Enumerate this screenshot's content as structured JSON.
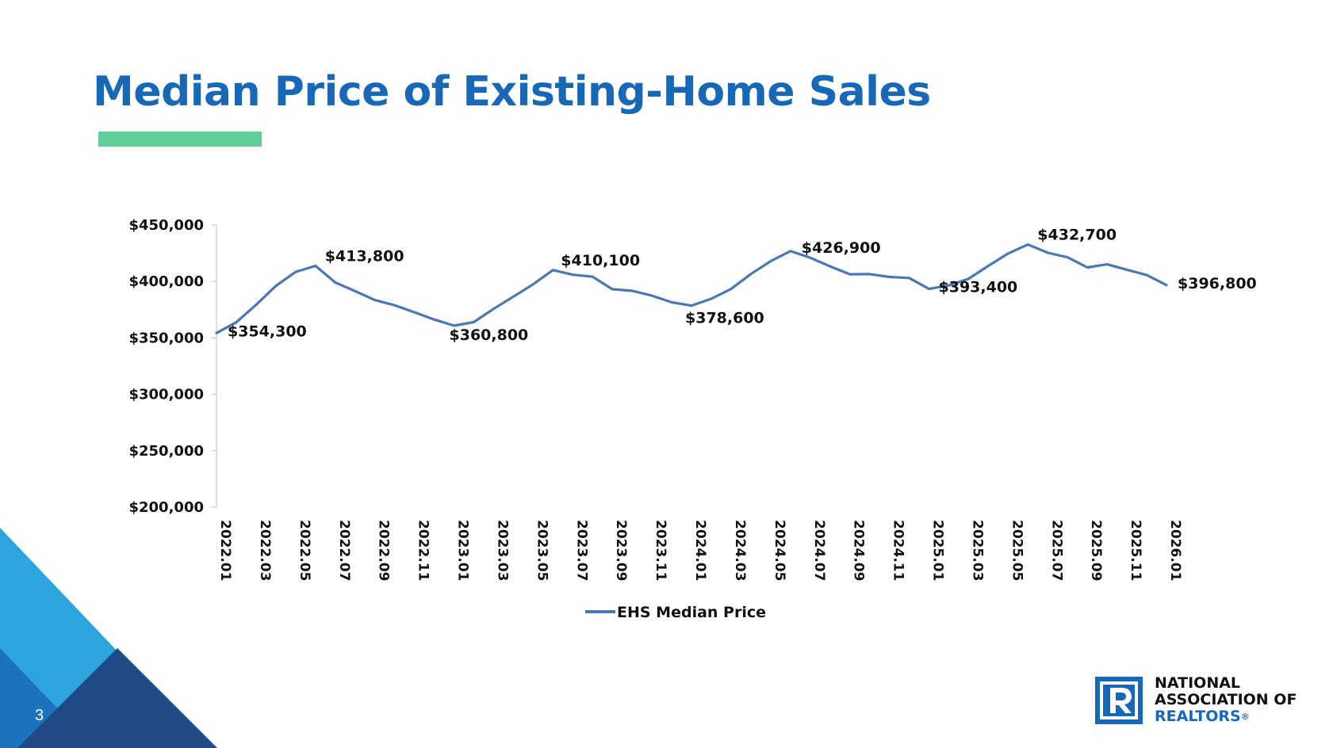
{
  "slide": {
    "title": "Median Price of Existing-Home Sales",
    "page_number": "3",
    "colors": {
      "title": "#1769b7",
      "accent_bar": "#5fcf97",
      "series": "#4a78b3"
    }
  },
  "logo": {
    "line1": "NATIONAL",
    "line2": "ASSOCIATION OF",
    "line3": "REALTORS",
    "registered_mark": "®"
  },
  "chart_data": {
    "type": "line",
    "title": "",
    "xlabel": "",
    "ylabel": "",
    "ylim": [
      200000,
      450000
    ],
    "y_ticks": [
      {
        "value": 450000,
        "label": "$450,000"
      },
      {
        "value": 400000,
        "label": "$400,000"
      },
      {
        "value": 350000,
        "label": "$350,000"
      },
      {
        "value": 300000,
        "label": "$300,000"
      },
      {
        "value": 250000,
        "label": "$250,000"
      },
      {
        "value": 200000,
        "label": "$200,000"
      }
    ],
    "x_tick_labels": [
      "2022.01",
      "2022.03",
      "2022.05",
      "2022.07",
      "2022.09",
      "2022.11",
      "2023.01",
      "2023.03",
      "2023.05",
      "2023.07",
      "2023.09",
      "2023.11",
      "2024.01",
      "2024.03",
      "2024.05",
      "2024.07",
      "2024.09",
      "2024.11",
      "2025.01",
      "2025.03",
      "2025.05",
      "2025.07",
      "2025.09",
      "2025.11",
      "2026.01"
    ],
    "categories": [
      "2022.01",
      "2022.02",
      "2022.03",
      "2022.04",
      "2022.05",
      "2022.06",
      "2022.07",
      "2022.08",
      "2022.09",
      "2022.10",
      "2022.11",
      "2022.12",
      "2023.01",
      "2023.02",
      "2023.03",
      "2023.04",
      "2023.05",
      "2023.06",
      "2023.07",
      "2023.08",
      "2023.09",
      "2023.10",
      "2023.11",
      "2023.12",
      "2024.01",
      "2024.02",
      "2024.03",
      "2024.04",
      "2024.05",
      "2024.06",
      "2024.07",
      "2024.08",
      "2024.09",
      "2024.10",
      "2024.11",
      "2024.12",
      "2025.01",
      "2025.02",
      "2025.03",
      "2025.04",
      "2025.05",
      "2025.06",
      "2025.07",
      "2025.08",
      "2025.09",
      "2025.10",
      "2025.11",
      "2025.12",
      "2026.01"
    ],
    "series": [
      {
        "name": "EHS Median Price",
        "values": [
          354300,
          363800,
          379300,
          396100,
          408400,
          413800,
          399100,
          391400,
          383500,
          378900,
          372700,
          366300,
          360800,
          364000,
          375700,
          386500,
          397500,
          410100,
          406000,
          404200,
          393100,
          391700,
          387400,
          381500,
          378600,
          384700,
          393300,
          406600,
          418000,
          426900,
          421000,
          413400,
          406400,
          406500,
          404000,
          403100,
          393400,
          396500,
          402300,
          413800,
          424800,
          432700,
          425400,
          421400,
          412400,
          415200,
          410400,
          405700,
          396800
        ]
      }
    ],
    "data_labels": [
      {
        "index": 0,
        "text": "$354,300"
      },
      {
        "index": 5,
        "text": "$413,800"
      },
      {
        "index": 12,
        "text": "$360,800"
      },
      {
        "index": 17,
        "text": "$410,100"
      },
      {
        "index": 24,
        "text": "$378,600"
      },
      {
        "index": 29,
        "text": "$426,900"
      },
      {
        "index": 36,
        "text": "$393,400"
      },
      {
        "index": 41,
        "text": "$432,700"
      },
      {
        "index": 48,
        "text": "$396,800"
      }
    ],
    "legend": {
      "position": "bottom",
      "label": "EHS Median Price"
    },
    "grid": false
  }
}
